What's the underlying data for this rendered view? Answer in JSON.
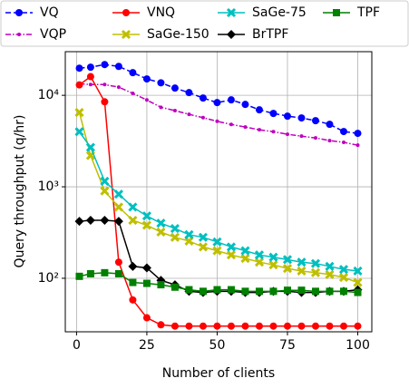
{
  "chart_data": {
    "type": "line",
    "log_y": true,
    "grid": true,
    "xlabel": "Number of clients",
    "ylabel": "Query throughput (q/hr)",
    "x": [
      1,
      5,
      10,
      15,
      20,
      25,
      30,
      35,
      40,
      45,
      50,
      55,
      60,
      65,
      70,
      75,
      80,
      85,
      90,
      95,
      100
    ],
    "xlim": [
      -4,
      105
    ],
    "xticks": [
      0,
      25,
      50,
      75,
      100
    ],
    "ylim": [
      26,
      30000
    ],
    "yticks": [
      {
        "value": 100,
        "label": "10²"
      },
      {
        "value": 1000,
        "label": "10³"
      },
      {
        "value": 10000,
        "label": "10⁴"
      }
    ],
    "legend": "top",
    "series": [
      {
        "name": "VQ",
        "color": "#0000ff",
        "marker": "circle",
        "dash": "dashed",
        "values": [
          19800,
          20300,
          21700,
          20700,
          17700,
          15100,
          13700,
          12000,
          10700,
          9340,
          8330,
          8920,
          7960,
          6940,
          6340,
          5920,
          5660,
          5280,
          4820,
          4020,
          3840
        ]
      },
      {
        "name": "VQP",
        "color": "#bf00bf",
        "marker": "dot",
        "dash": "dashdot",
        "values": [
          13400,
          13100,
          13100,
          12300,
          10500,
          8900,
          7400,
          6800,
          6200,
          5700,
          5200,
          4800,
          4500,
          4200,
          4000,
          3750,
          3580,
          3420,
          3200,
          3060,
          2850
        ]
      },
      {
        "name": "VNQ",
        "color": "#ff0000",
        "marker": "circle",
        "dash": "solid",
        "values": [
          13000,
          16000,
          8500,
          150,
          58,
          37,
          31,
          30,
          30,
          30,
          30,
          30,
          30,
          30,
          30,
          30,
          30,
          30,
          30,
          30,
          30
        ]
      },
      {
        "name": "SaGe-150",
        "color": "#bfbf00",
        "marker": "x",
        "dash": "solid",
        "values": [
          6500,
          2200,
          900,
          600,
          430,
          380,
          320,
          280,
          255,
          220,
          200,
          180,
          165,
          150,
          140,
          128,
          120,
          115,
          110,
          102,
          90
        ]
      },
      {
        "name": "SaGe-75",
        "color": "#00bfbf",
        "marker": "x",
        "dash": "solid",
        "values": [
          4000,
          2700,
          1150,
          830,
          600,
          480,
          400,
          350,
          300,
          280,
          250,
          220,
          200,
          180,
          170,
          160,
          150,
          145,
          135,
          125,
          120
        ]
      },
      {
        "name": "BrTPF",
        "color": "#000000",
        "marker": "diamond",
        "dash": "solid",
        "values": [
          420,
          430,
          430,
          420,
          135,
          130,
          95,
          85,
          72,
          70,
          72,
          72,
          70,
          70,
          72,
          72,
          70,
          70,
          72,
          72,
          75
        ]
      },
      {
        "name": "TPF",
        "color": "#008000",
        "marker": "square",
        "dash": "solid",
        "values": [
          105,
          112,
          115,
          112,
          90,
          88,
          85,
          80,
          75,
          72,
          75,
          75,
          72,
          72,
          72,
          74,
          74,
          72,
          72,
          72,
          70
        ]
      }
    ]
  }
}
